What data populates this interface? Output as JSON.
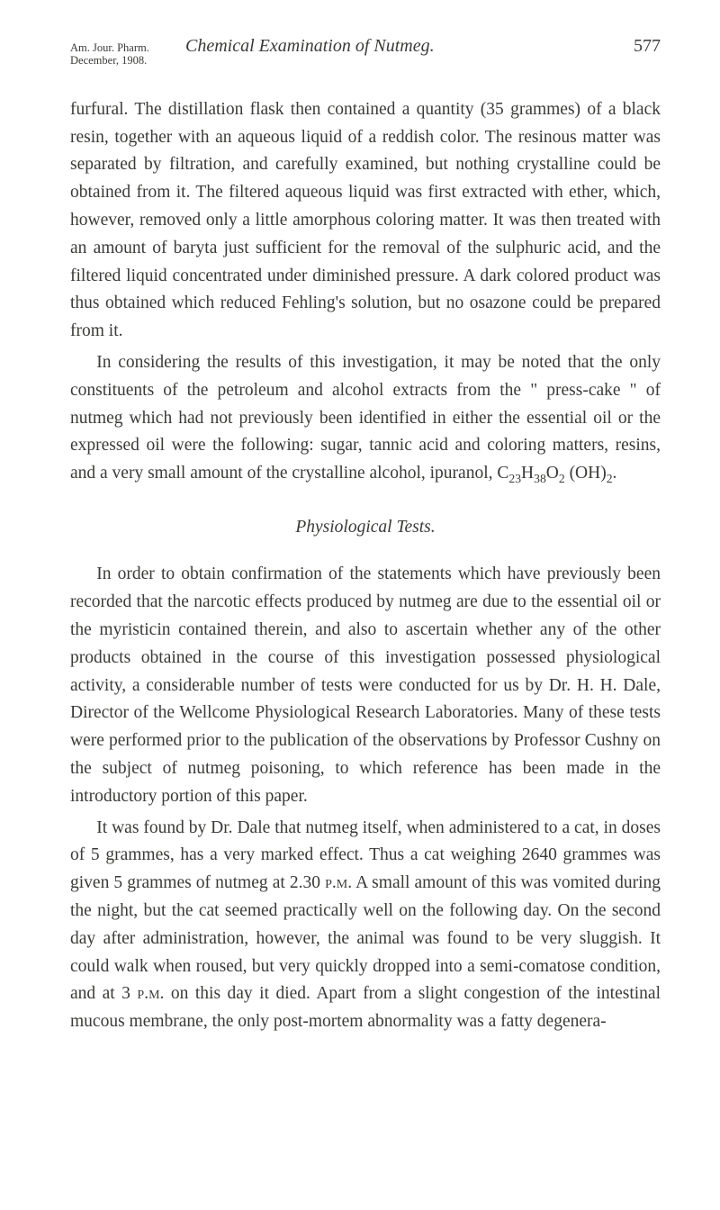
{
  "header": {
    "left_line1": "Am. Jour. Pharm.",
    "left_line2": "December, 1908.",
    "center": "Chemical Examination of Nutmeg.",
    "page_number": "577"
  },
  "paragraphs": {
    "p1": "furfural. The distillation flask then contained a quantity (35 grammes) of a black resin, together with an aqueous liquid of a reddish color. The resinous matter was separated by filtration, and carefully examined, but nothing crystalline could be obtained from it. The filtered aqueous liquid was first extracted with ether, which, however, removed only a little amorphous coloring matter. It was then treated with an amount of baryta just sufficient for the removal of the sulphuric acid, and the filtered liquid concentrated under diminished pressure. A dark colored product was thus obtained which reduced Fehling's solution, but no osazone could be prepared from it.",
    "p2_pre": "In considering the results of this investigation, it may be noted that the only constituents of the petroleum and alcohol extracts from the \" press-cake \" of nutmeg which had not previously been identified in either the essential oil or the expressed oil were the following: sugar, tannic acid and coloring matters, resins, and a very small amount of the crystalline alcohol, ipuranol, ",
    "p2_formula_C": "C",
    "p2_sub23": "23",
    "p2_formula_H": "H",
    "p2_sub38": "38",
    "p2_formula_O": "O",
    "p2_sub2a": "2",
    "p2_ohopen": " (OH)",
    "p2_sub2b": "2",
    "p2_end": ".",
    "subhead": "Physiological Tests.",
    "p3": "In order to obtain confirmation of the statements which have previously been recorded that the narcotic effects produced by nutmeg are due to the essential oil or the myristicin contained therein, and also to ascertain whether any of the other products obtained in the course of this investigation possessed physiological activity, a considerable number of tests were conducted for us by Dr. H. H. Dale, Director of the Wellcome Physiological Research Laboratories. Many of these tests were performed prior to the publication of the observations by Professor Cushny on the subject of nutmeg poisoning, to which reference has been made in the introductory portion of this paper.",
    "p4_a": "It was found by Dr. Dale that nutmeg itself, when administered to a cat, in doses of 5 grammes, has a very marked effect. Thus a cat weighing 2640 grammes was given 5 grammes of nutmeg at 2.30 ",
    "p4_pm1": "p.m.",
    "p4_b": " A small amount of this was vomited during the night, but the cat seemed practically well on the following day. On the second day after administration, however, the animal was found to be very sluggish. It could walk when roused, but very quickly dropped into a semi-comatose condition, and at 3 ",
    "p4_pm2": "p.m.",
    "p4_c": " on this day it died. Apart from a slight congestion of the intestinal mucous membrane, the only post-mortem abnormality was a fatty degenera-"
  }
}
